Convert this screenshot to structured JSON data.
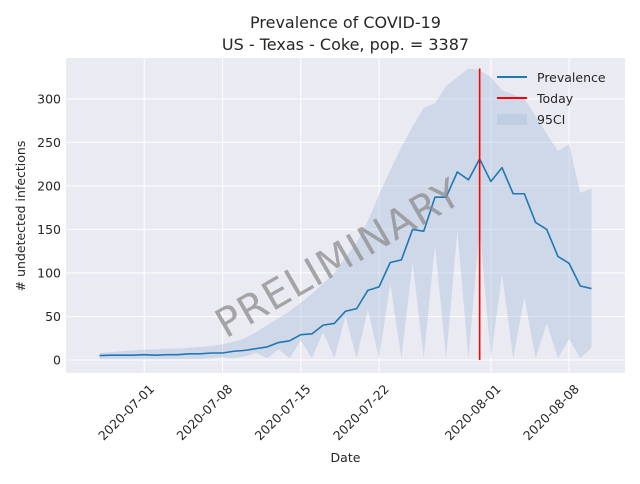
{
  "chart_data": {
    "type": "line",
    "title": "Prevalence of COVID-19",
    "subtitle": "US - Texas - Coke, pop. = 3387",
    "xlabel": "Date",
    "ylabel": "# undetected infections",
    "x_start": "2020-06-27",
    "x_end": "2020-08-11",
    "x_range": [
      "2020-06-24",
      "2020-08-13"
    ],
    "ylim": [
      -15,
      347
    ],
    "x_ticks": [
      "2020-07-01",
      "2020-07-08",
      "2020-07-15",
      "2020-07-22",
      "2020-08-01",
      "2020-08-08"
    ],
    "y_ticks": [
      0,
      50,
      100,
      150,
      200,
      250,
      300
    ],
    "grid": true,
    "legend_placement": "top-right",
    "watermark": "PRELIMINARY",
    "today": {
      "date": "2020-07-31",
      "value_range": [
        0,
        335
      ],
      "color": "#ff0000",
      "label": "Today"
    },
    "series": [
      {
        "name": "Prevalence",
        "color": "#1f77b4",
        "values": [
          5,
          5.5,
          5.5,
          5.5,
          6,
          5.5,
          6,
          6,
          7,
          7,
          8,
          8,
          10,
          11,
          13,
          15,
          20,
          22,
          29,
          30,
          40,
          42,
          56,
          59,
          80,
          84,
          112,
          115,
          150,
          148,
          187,
          187,
          216,
          207,
          231,
          205,
          221,
          191,
          191,
          158,
          150,
          119,
          111,
          85,
          82
        ]
      }
    ],
    "band": {
      "name": "95CI",
      "color": "#b0c4de",
      "upper": [
        8,
        9,
        10,
        11,
        12,
        12,
        13,
        13,
        14,
        15,
        16,
        18,
        21,
        25,
        32,
        40,
        48,
        56,
        66,
        76,
        88,
        100,
        118,
        135,
        160,
        190,
        218,
        245,
        268,
        290,
        295,
        315,
        325,
        335,
        333,
        325,
        310,
        305,
        300,
        280,
        260,
        240,
        248,
        192,
        197
      ],
      "lower": [
        1,
        1,
        1,
        1,
        1,
        1,
        1,
        1,
        1,
        1,
        2,
        3,
        2,
        4,
        8,
        2,
        12,
        2,
        22,
        2,
        32,
        2,
        50,
        2,
        58,
        2,
        88,
        2,
        112,
        2,
        132,
        2,
        148,
        2,
        152,
        2,
        98,
        2,
        72,
        2,
        42,
        2,
        24,
        2,
        14
      ]
    }
  }
}
